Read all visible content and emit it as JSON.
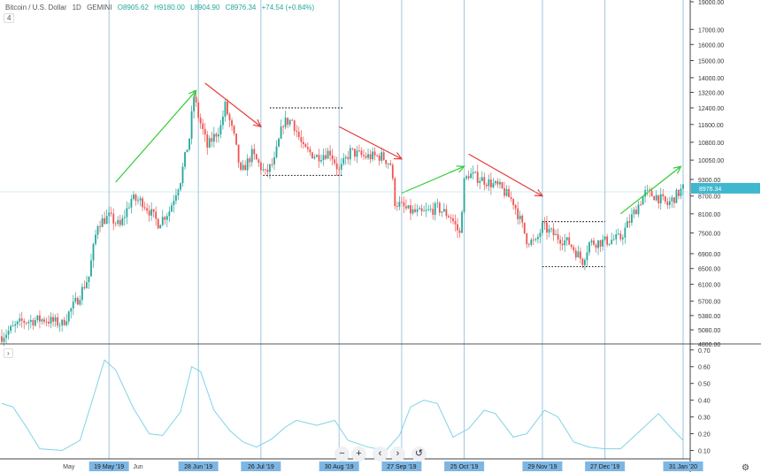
{
  "header": {
    "symbol": "Bitcoin / U.S. Dollar",
    "interval": "1D",
    "exchange": "GEMINI",
    "open": "O8905.62",
    "high": "H9180.00",
    "low": "L8904.90",
    "close": "C8976.34",
    "change": "+74.54 (+0.84%)",
    "sub_toggle": "4"
  },
  "last_price_label": "8976.34",
  "controls": {
    "zoom_out": "−",
    "zoom_in": "+",
    "prev": "‹",
    "next": "›",
    "reset": "↺",
    "sub_toggle": "›"
  },
  "colors": {
    "up": "#26a69a",
    "down": "#ef5350",
    "indicator": "#7fd3e6",
    "vline": "#9ec5de",
    "arrow_up": "#33cc33",
    "arrow_down": "#e53935",
    "date_label_bg": "#7eb6e3"
  },
  "chart_data": {
    "type": "candlestick",
    "price_axis": {
      "scale": "log",
      "ticks": [
        4800,
        5080,
        5380,
        5700,
        6100,
        6500,
        6900,
        7500,
        8100,
        8700,
        9300,
        10050,
        10800,
        11600,
        12400,
        13200,
        14000,
        15000,
        16000,
        17000,
        19000
      ],
      "tick_labels": [
        "4800.00",
        "5080.00",
        "5380.00",
        "5700.00",
        "6100.00",
        "6500.00",
        "6900.00",
        "7500.00",
        "8100.00",
        "8700.00",
        "9300.00",
        "10050.00",
        "10800.00",
        "11600.00",
        "12400.00",
        "13200.00",
        "14000.00",
        "15000.00",
        "16000.00",
        "17000.00",
        "19000.00"
      ],
      "range": [
        4800,
        19000
      ]
    },
    "indicator_axis": {
      "ticks": [
        0.1,
        0.2,
        0.3,
        0.4,
        0.5,
        0.6,
        0.7
      ],
      "tick_labels": [
        "0.10",
        "0.20",
        "0.30",
        "0.40",
        "0.50",
        "0.60",
        "0.70"
      ],
      "range": [
        0.05,
        0.72
      ]
    },
    "date_range": [
      "2019-04-01",
      "2020-01-31"
    ],
    "date_labels": [
      {
        "date": "2019-05-01",
        "label": "May",
        "highlight": false
      },
      {
        "date": "2019-05-19",
        "label": "19 May '19",
        "highlight": true
      },
      {
        "date": "2019-06-01",
        "label": "Jun",
        "highlight": false
      },
      {
        "date": "2019-06-28",
        "label": "28 Jun '19",
        "highlight": true
      },
      {
        "date": "2019-07-26",
        "label": "26 Jul '19",
        "highlight": true
      },
      {
        "date": "2019-08-30",
        "label": "30 Aug '19",
        "highlight": true
      },
      {
        "date": "2019-09-27",
        "label": "27 Sep '19",
        "highlight": true
      },
      {
        "date": "2019-10-25",
        "label": "25 Oct '19",
        "highlight": true
      },
      {
        "date": "2019-11-29",
        "label": "29 Nov '19",
        "highlight": true
      },
      {
        "date": "2019-12-27",
        "label": "27 Dec '19",
        "highlight": true
      },
      {
        "date": "2020-01-31",
        "label": "31 Jan '20",
        "highlight": true
      }
    ],
    "price_path": [
      [
        "2019-04-01",
        4950
      ],
      [
        "2019-04-10",
        5250
      ],
      [
        "2019-04-20",
        5300
      ],
      [
        "2019-04-28",
        5200
      ],
      [
        "2019-05-05",
        5750
      ],
      [
        "2019-05-10",
        6300
      ],
      [
        "2019-05-14",
        7800
      ],
      [
        "2019-05-19",
        8000
      ],
      [
        "2019-05-24",
        7700
      ],
      [
        "2019-05-29",
        8600
      ],
      [
        "2019-06-03",
        8500
      ],
      [
        "2019-06-10",
        7800
      ],
      [
        "2019-06-15",
        8200
      ],
      [
        "2019-06-20",
        9300
      ],
      [
        "2019-06-24",
        11000
      ],
      [
        "2019-06-26",
        13000
      ],
      [
        "2019-06-28",
        12000
      ],
      [
        "2019-07-02",
        10600
      ],
      [
        "2019-07-08",
        11500
      ],
      [
        "2019-07-10",
        12500
      ],
      [
        "2019-07-14",
        11000
      ],
      [
        "2019-07-17",
        9500
      ],
      [
        "2019-07-22",
        10300
      ],
      [
        "2019-07-28",
        9500
      ],
      [
        "2019-08-01",
        10000
      ],
      [
        "2019-08-05",
        11700
      ],
      [
        "2019-08-09",
        11800
      ],
      [
        "2019-08-14",
        10500
      ],
      [
        "2019-08-20",
        10200
      ],
      [
        "2019-08-26",
        10400
      ],
      [
        "2019-08-30",
        9600
      ],
      [
        "2019-09-04",
        10400
      ],
      [
        "2019-09-10",
        10200
      ],
      [
        "2019-09-18",
        10200
      ],
      [
        "2019-09-22",
        9900
      ],
      [
        "2019-09-24",
        8500
      ],
      [
        "2019-09-30",
        8200
      ],
      [
        "2019-10-06",
        8100
      ],
      [
        "2019-10-13",
        8300
      ],
      [
        "2019-10-19",
        8000
      ],
      [
        "2019-10-23",
        7450
      ],
      [
        "2019-10-25",
        9200
      ],
      [
        "2019-10-27",
        9500
      ],
      [
        "2019-11-02",
        9300
      ],
      [
        "2019-11-10",
        9000
      ],
      [
        "2019-11-16",
        8500
      ],
      [
        "2019-11-22",
        7300
      ],
      [
        "2019-11-26",
        7200
      ],
      [
        "2019-11-29",
        7700
      ],
      [
        "2019-12-05",
        7400
      ],
      [
        "2019-12-11",
        7200
      ],
      [
        "2019-12-17",
        6700
      ],
      [
        "2019-12-20",
        7200
      ],
      [
        "2019-12-27",
        7250
      ],
      [
        "2020-01-03",
        7350
      ],
      [
        "2020-01-08",
        8000
      ],
      [
        "2020-01-14",
        8800
      ],
      [
        "2020-01-19",
        8700
      ],
      [
        "2020-01-24",
        8400
      ],
      [
        "2020-01-31",
        8976
      ]
    ],
    "indicator_series": {
      "points": [
        [
          "2019-04-01",
          0.38
        ],
        [
          "2019-04-06",
          0.36
        ],
        [
          "2019-04-12",
          0.24
        ],
        [
          "2019-04-18",
          0.11
        ],
        [
          "2019-04-28",
          0.1
        ],
        [
          "2019-05-06",
          0.16
        ],
        [
          "2019-05-12",
          0.42
        ],
        [
          "2019-05-17",
          0.64
        ],
        [
          "2019-05-22",
          0.58
        ],
        [
          "2019-05-30",
          0.35
        ],
        [
          "2019-06-06",
          0.2
        ],
        [
          "2019-06-12",
          0.19
        ],
        [
          "2019-06-20",
          0.33
        ],
        [
          "2019-06-25",
          0.6
        ],
        [
          "2019-06-29",
          0.57
        ],
        [
          "2019-07-05",
          0.34
        ],
        [
          "2019-07-12",
          0.22
        ],
        [
          "2019-07-18",
          0.15
        ],
        [
          "2019-07-24",
          0.12
        ],
        [
          "2019-07-31",
          0.17
        ],
        [
          "2019-08-06",
          0.24
        ],
        [
          "2019-08-11",
          0.28
        ],
        [
          "2019-08-20",
          0.25
        ],
        [
          "2019-08-28",
          0.28
        ],
        [
          "2019-09-03",
          0.16
        ],
        [
          "2019-09-12",
          0.12
        ],
        [
          "2019-09-20",
          0.1
        ],
        [
          "2019-09-26",
          0.19
        ],
        [
          "2019-10-01",
          0.36
        ],
        [
          "2019-10-07",
          0.4
        ],
        [
          "2019-10-13",
          0.38
        ],
        [
          "2019-10-20",
          0.18
        ],
        [
          "2019-10-27",
          0.23
        ],
        [
          "2019-11-03",
          0.34
        ],
        [
          "2019-11-08",
          0.32
        ],
        [
          "2019-11-16",
          0.18
        ],
        [
          "2019-11-22",
          0.2
        ],
        [
          "2019-11-30",
          0.34
        ],
        [
          "2019-12-06",
          0.3
        ],
        [
          "2019-12-13",
          0.15
        ],
        [
          "2019-12-20",
          0.12
        ],
        [
          "2019-12-27",
          0.11
        ],
        [
          "2020-01-03",
          0.11
        ],
        [
          "2020-01-12",
          0.22
        ],
        [
          "2020-01-20",
          0.32
        ],
        [
          "2020-01-26",
          0.23
        ],
        [
          "2020-01-31",
          0.16
        ]
      ]
    },
    "arrows": [
      {
        "dir": "up",
        "from": [
          "2019-05-22",
          9200
        ],
        "to": [
          "2019-06-27",
          13300
        ]
      },
      {
        "dir": "down",
        "from": [
          "2019-07-01",
          13700
        ],
        "to": [
          "2019-07-26",
          11500
        ]
      },
      {
        "dir": "down",
        "from": [
          "2019-08-30",
          11500
        ],
        "to": [
          "2019-09-27",
          10100
        ]
      },
      {
        "dir": "up",
        "from": [
          "2019-09-27",
          8800
        ],
        "to": [
          "2019-10-25",
          9800
        ]
      },
      {
        "dir": "down",
        "from": [
          "2019-10-27",
          10300
        ],
        "to": [
          "2019-11-29",
          8700
        ]
      },
      {
        "dir": "up",
        "from": [
          "2020-01-03",
          8100
        ],
        "to": [
          "2020-01-30",
          9800
        ]
      }
    ],
    "dotted_levels": [
      {
        "from": "2019-07-30",
        "to": "2019-09-01",
        "price": 12400
      },
      {
        "from": "2019-07-27",
        "to": "2019-09-01",
        "price": 9450
      },
      {
        "from": "2019-11-29",
        "to": "2019-12-27",
        "price": 7850
      },
      {
        "from": "2019-11-29",
        "to": "2019-12-27",
        "price": 6550
      }
    ]
  }
}
